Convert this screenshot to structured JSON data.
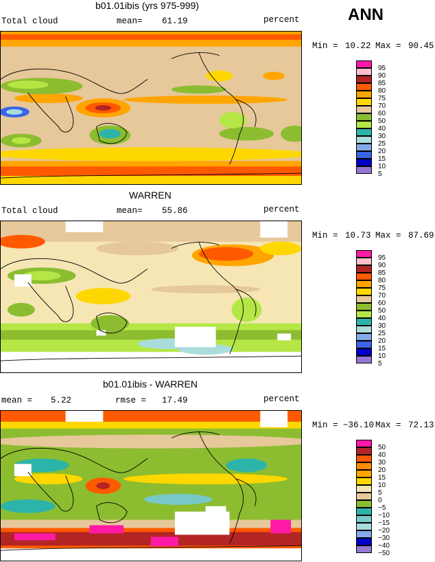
{
  "season": "ANN",
  "panels": [
    {
      "title": "b01.01ibis (yrs 975-999)",
      "left_label": "Total cloud",
      "mean_label": "mean=",
      "mean_value": "61.19",
      "units": "percent",
      "min_label": "Min =",
      "min_value": "10.22",
      "max_label": "Max =",
      "max_value": "90.45",
      "legend": {
        "labels": [
          "95",
          "90",
          "85",
          "80",
          "75",
          "70",
          "60",
          "50",
          "40",
          "30",
          "25",
          "20",
          "15",
          "10",
          "5"
        ],
        "colors": [
          "#ff1aa6",
          "#ffbfcc",
          "#b32424",
          "#ff5a00",
          "#ffa500",
          "#ffd700",
          "#e6c89a",
          "#8cbd30",
          "#b4e646",
          "#2db4aa",
          "#aadcdc",
          "#82aae6",
          "#3c64e6",
          "#0000c8",
          "#9678d2"
        ]
      }
    },
    {
      "title": "WARREN",
      "left_label": "Total cloud",
      "mean_label": "mean=",
      "mean_value": "55.86",
      "units": "percent",
      "min_label": "Min =",
      "min_value": "10.73",
      "max_label": "Max =",
      "max_value": "87.69",
      "legend": {
        "labels": [
          "95",
          "90",
          "85",
          "80",
          "75",
          "70",
          "60",
          "50",
          "40",
          "30",
          "25",
          "20",
          "15",
          "10",
          "5"
        ],
        "colors": [
          "#ff1aa6",
          "#ffbfcc",
          "#b32424",
          "#ff5a00",
          "#ffa500",
          "#ffd700",
          "#e6c89a",
          "#8cbd30",
          "#b4e646",
          "#2db4aa",
          "#aadcdc",
          "#82aae6",
          "#3c64e6",
          "#0000c8",
          "#9678d2"
        ]
      }
    },
    {
      "title": "b01.01ibis - WARREN",
      "left_label": "mean =",
      "left_value": "5.22",
      "rmse_label": "rmse =",
      "rmse_value": "17.49",
      "units": "percent",
      "min_label": "Min =",
      "min_value": "−36.10",
      "max_label": "Max =",
      "max_value": "72.13",
      "legend": {
        "labels": [
          "50",
          "40",
          "30",
          "20",
          "15",
          "10",
          "5",
          "0",
          "−5",
          "−10",
          "−15",
          "−20",
          "−30",
          "−40",
          "−50"
        ],
        "colors": [
          "#ff1aa6",
          "#b32424",
          "#ff5a00",
          "#ff8c00",
          "#ffa500",
          "#ffd700",
          "#f5e6b4",
          "#e6c89a",
          "#8cbd30",
          "#2db4aa",
          "#78c8c8",
          "#aadcdc",
          "#82aae6",
          "#0000c8",
          "#9678d2"
        ]
      }
    }
  ]
}
